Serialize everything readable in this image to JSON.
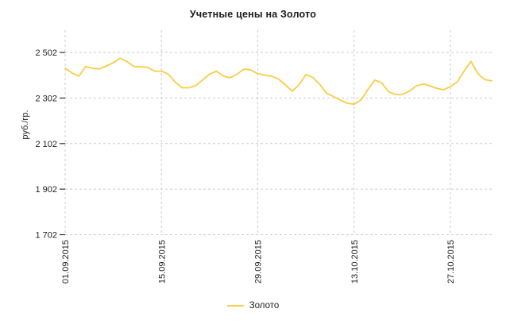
{
  "title": "Учетные цены на Золото",
  "y_axis": {
    "title": "руб./гр.",
    "tick_labels": [
      "2 502",
      "2 302",
      "2 102",
      "1 902",
      "1 702"
    ],
    "ticks": [
      2502,
      2302,
      2102,
      1902,
      1702
    ]
  },
  "x_axis": {
    "tick_labels": [
      "01.09.2015",
      "15.09.2015",
      "29.09.2015",
      "13.10.2015",
      "27.10.2015"
    ],
    "tick_days": [
      0,
      14,
      28,
      42,
      56
    ]
  },
  "legend": {
    "label": "Золото"
  },
  "colors": {
    "line": "#FACC45",
    "grid": "#cccccc",
    "tick": "#333333",
    "text": "#222222"
  },
  "chart_data": {
    "type": "line",
    "title": "Учетные цены на Золото",
    "xlabel": "",
    "ylabel": "руб./гр.",
    "x_unit": "days since 01.09.2015 (daily points)",
    "x_tick_labels": [
      "01.09.2015",
      "15.09.2015",
      "29.09.2015",
      "13.10.2015",
      "27.10.2015"
    ],
    "x_tick_days": [
      0,
      14,
      28,
      42,
      56
    ],
    "y_ticks": [
      1702,
      1902,
      2102,
      2302,
      2502
    ],
    "y_tick_labels": [
      "1 702",
      "1 902",
      "2 102",
      "2 302",
      "2 502"
    ],
    "ylim": [
      1702,
      2600
    ],
    "grid": true,
    "grid_style": "dashed",
    "legend_position": "bottom-center",
    "series": [
      {
        "name": "Золото",
        "color": "#FACC45",
        "values": [
          2433,
          2412,
          2398,
          2441,
          2432,
          2430,
          2443,
          2457,
          2477,
          2462,
          2441,
          2439,
          2437,
          2420,
          2420,
          2407,
          2372,
          2347,
          2347,
          2357,
          2382,
          2407,
          2420,
          2398,
          2391,
          2407,
          2429,
          2425,
          2409,
          2403,
          2398,
          2386,
          2360,
          2332,
          2360,
          2405,
          2393,
          2362,
          2323,
          2309,
          2293,
          2279,
          2275,
          2293,
          2340,
          2381,
          2369,
          2330,
          2318,
          2318,
          2331,
          2355,
          2364,
          2356,
          2345,
          2338,
          2352,
          2373,
          2421,
          2463,
          2408,
          2383,
          2377
        ]
      }
    ]
  }
}
